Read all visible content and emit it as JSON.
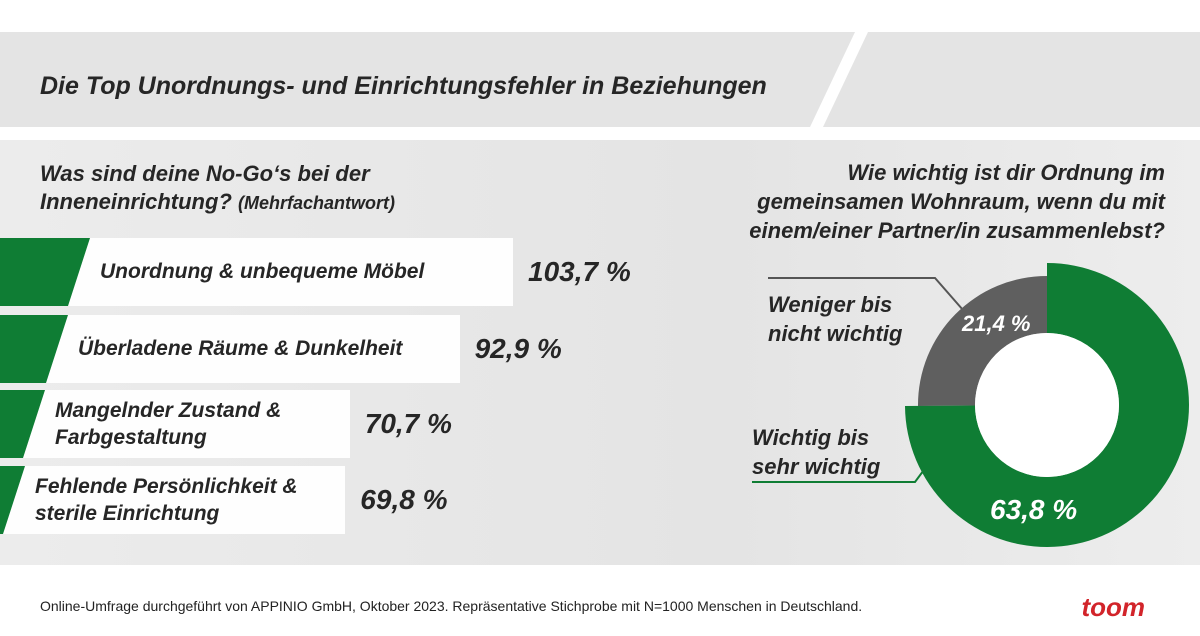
{
  "header": {
    "title": "Die Top Unordnungs- und Einrichtungsfehler in Beziehungen"
  },
  "chart_data": [
    {
      "type": "bar",
      "title": "Was sind deine No-Go‘s bei der Inneneinrichtung?",
      "subtitle": "(Mehrfachantwort)",
      "categories": [
        "Unordnung & unbequeme Möbel",
        "Überladene Räume & Dunkelheit",
        "Mangelnder Zustand & Farbgestaltung",
        "Fehlende Persönlichkeit & sterile Einrichtung"
      ],
      "values": [
        103.7,
        92.9,
        70.7,
        69.8
      ],
      "value_labels": [
        "103,7 %",
        "92,9 %",
        "70,7 %",
        "69,8 %"
      ],
      "color": "#0f7d34"
    },
    {
      "type": "pie",
      "title": "Wie wichtig ist dir Ordnung im gemeinsamen Wohnraum, wenn du mit einem/einer Partner/in zusammenlebst?",
      "categories": [
        "Weniger bis nicht wichtig",
        "Wichtig bis sehr wichtig"
      ],
      "values": [
        21.4,
        63.8
      ],
      "value_labels": [
        "21,4 %",
        "63,8 %"
      ],
      "colors": [
        "#5f5f5f",
        "#0f7d34"
      ]
    }
  ],
  "footer": {
    "note": "Online-Umfrage durchgeführt von APPINIO GmbH, Oktober 2023. Repräsentative Stichprobe mit N=1000 Menschen in Deutschland.",
    "logo": "toom"
  }
}
